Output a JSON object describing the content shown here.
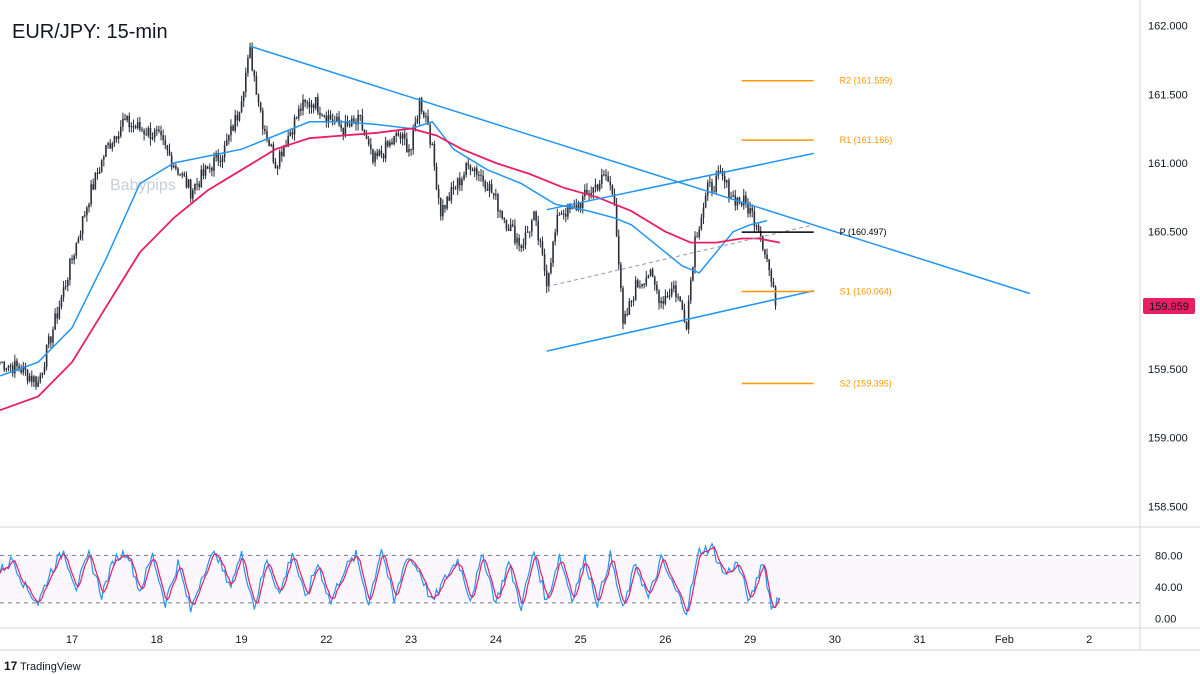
{
  "chart_data": [
    {
      "type": "candlestick",
      "title": "EUR/JPY: 15-min",
      "watermark": "Babypips",
      "colors": {
        "bull": "#2a2e39",
        "bear": "#2a2e39",
        "sma_fast": "#2196f3",
        "sma_slow": "#e91e63",
        "trendline": "#2196f3",
        "level": "#ff9800",
        "pivot": "#000000",
        "price_tag": "#e91e63"
      },
      "ylim": [
        158.35,
        162.15
      ],
      "y_ticks": [
        162.0,
        161.5,
        161.0,
        160.5,
        160.0,
        159.5,
        159.0,
        158.5
      ],
      "y_tick_labels": [
        "162.000",
        "161.500",
        "161.000",
        "160.500",
        "",
        "159.500",
        "159.000",
        "158.500"
      ],
      "x_ticks": [
        {
          "t": 1,
          "label": "17"
        },
        {
          "t": 2,
          "label": "18"
        },
        {
          "t": 3,
          "label": "19"
        },
        {
          "t": 4,
          "label": "22"
        },
        {
          "t": 5,
          "label": "23"
        },
        {
          "t": 6,
          "label": "24"
        },
        {
          "t": 7,
          "label": "25"
        },
        {
          "t": 8,
          "label": "26"
        },
        {
          "t": 9,
          "label": "29"
        },
        {
          "t": 10,
          "label": "30"
        },
        {
          "t": 11,
          "label": "31"
        },
        {
          "t": 12,
          "label": "Feb"
        },
        {
          "t": 13,
          "label": "2"
        }
      ],
      "xlim": [
        0.15,
        13.6
      ],
      "last_price": 159.959,
      "last_price_label": "159.959",
      "price_path": [
        [
          0.15,
          159.55
        ],
        [
          0.4,
          159.5
        ],
        [
          0.6,
          159.4
        ],
        [
          0.8,
          159.85
        ],
        [
          1.0,
          160.3
        ],
        [
          1.2,
          160.75
        ],
        [
          1.4,
          161.1
        ],
        [
          1.6,
          161.3
        ],
        [
          1.8,
          161.25
        ],
        [
          2.0,
          161.2
        ],
        [
          2.2,
          161.0
        ],
        [
          2.4,
          160.8
        ],
        [
          2.6,
          160.95
        ],
        [
          2.8,
          161.1
        ],
        [
          2.95,
          161.35
        ],
        [
          3.1,
          161.8
        ],
        [
          3.25,
          161.3
        ],
        [
          3.4,
          161.0
        ],
        [
          3.55,
          161.2
        ],
        [
          3.7,
          161.4
        ],
        [
          3.85,
          161.45
        ],
        [
          4.0,
          161.35
        ],
        [
          4.2,
          161.25
        ],
        [
          4.4,
          161.3
        ],
        [
          4.55,
          161.0
        ],
        [
          4.7,
          161.1
        ],
        [
          4.85,
          161.2
        ],
        [
          5.0,
          161.1
        ],
        [
          5.1,
          161.45
        ],
        [
          5.2,
          161.3
        ],
        [
          5.35,
          160.65
        ],
        [
          5.5,
          160.8
        ],
        [
          5.7,
          161.0
        ],
        [
          5.9,
          160.85
        ],
        [
          6.1,
          160.6
        ],
        [
          6.3,
          160.4
        ],
        [
          6.45,
          160.6
        ],
        [
          6.6,
          160.15
        ],
        [
          6.75,
          160.65
        ],
        [
          6.9,
          160.65
        ],
        [
          7.05,
          160.75
        ],
        [
          7.2,
          160.85
        ],
        [
          7.3,
          160.9
        ],
        [
          7.4,
          160.75
        ],
        [
          7.5,
          159.8
        ],
        [
          7.65,
          160.1
        ],
        [
          7.8,
          160.2
        ],
        [
          7.95,
          160.0
        ],
        [
          8.1,
          160.1
        ],
        [
          8.25,
          159.85
        ],
        [
          8.35,
          160.45
        ],
        [
          8.5,
          160.8
        ],
        [
          8.65,
          160.9
        ],
        [
          8.8,
          160.75
        ],
        [
          8.95,
          160.7
        ],
        [
          9.1,
          160.55
        ],
        [
          9.2,
          160.3
        ],
        [
          9.3,
          159.96
        ]
      ],
      "sma_fast": [
        [
          0.15,
          159.45
        ],
        [
          0.6,
          159.55
        ],
        [
          1.0,
          159.8
        ],
        [
          1.4,
          160.3
        ],
        [
          1.8,
          160.85
        ],
        [
          2.2,
          161.0
        ],
        [
          2.6,
          161.05
        ],
        [
          3.0,
          161.1
        ],
        [
          3.4,
          161.2
        ],
        [
          3.8,
          161.3
        ],
        [
          4.2,
          161.3
        ],
        [
          4.6,
          161.28
        ],
        [
          5.0,
          161.25
        ],
        [
          5.25,
          161.3
        ],
        [
          5.5,
          161.1
        ],
        [
          5.9,
          160.95
        ],
        [
          6.3,
          160.85
        ],
        [
          6.7,
          160.7
        ],
        [
          7.1,
          160.65
        ],
        [
          7.4,
          160.6
        ],
        [
          7.6,
          160.55
        ],
        [
          7.9,
          160.4
        ],
        [
          8.2,
          160.25
        ],
        [
          8.4,
          160.2
        ],
        [
          8.6,
          160.35
        ],
        [
          8.8,
          160.5
        ],
        [
          9.0,
          160.55
        ],
        [
          9.2,
          160.58
        ]
      ],
      "sma_slow": [
        [
          0.15,
          159.2
        ],
        [
          0.6,
          159.3
        ],
        [
          1.0,
          159.55
        ],
        [
          1.4,
          159.95
        ],
        [
          1.8,
          160.35
        ],
        [
          2.2,
          160.6
        ],
        [
          2.6,
          160.8
        ],
        [
          3.0,
          160.95
        ],
        [
          3.4,
          161.1
        ],
        [
          3.8,
          161.18
        ],
        [
          4.2,
          161.2
        ],
        [
          4.6,
          161.22
        ],
        [
          5.0,
          161.25
        ],
        [
          5.3,
          161.2
        ],
        [
          5.6,
          161.1
        ],
        [
          6.0,
          161.0
        ],
        [
          6.4,
          160.92
        ],
        [
          6.8,
          160.82
        ],
        [
          7.2,
          160.75
        ],
        [
          7.6,
          160.65
        ],
        [
          8.0,
          160.5
        ],
        [
          8.3,
          160.42
        ],
        [
          8.6,
          160.42
        ],
        [
          8.9,
          160.45
        ],
        [
          9.1,
          160.45
        ],
        [
          9.35,
          160.42
        ]
      ],
      "trendlines": [
        {
          "from": [
            3.1,
            161.85
          ],
          "to": [
            12.3,
            160.05
          ],
          "style": "solid"
        },
        {
          "from": [
            6.6,
            159.63
          ],
          "to": [
            9.75,
            160.07
          ],
          "style": "solid"
        },
        {
          "from": [
            6.6,
            160.66
          ],
          "to": [
            9.75,
            161.07
          ],
          "style": "solid"
        },
        {
          "from": [
            6.6,
            160.1
          ],
          "to": [
            9.75,
            160.55
          ],
          "style": "dashed"
        }
      ],
      "levels": [
        {
          "name": "R2",
          "value": 161.599,
          "label": "R2 (161.599)",
          "t0": 8.9,
          "t1": 9.75,
          "kind": "resistance"
        },
        {
          "name": "R1",
          "value": 161.166,
          "label": "R1 (161.166)",
          "t0": 8.9,
          "t1": 9.75,
          "kind": "resistance"
        },
        {
          "name": "P",
          "value": 160.497,
          "label": "P (160.497)",
          "t0": 8.9,
          "t1": 9.75,
          "kind": "pivot"
        },
        {
          "name": "S1",
          "value": 160.064,
          "label": "S1 (160.064)",
          "t0": 8.9,
          "t1": 9.75,
          "kind": "support"
        },
        {
          "name": "S2",
          "value": 159.395,
          "label": "S2 (159.395)",
          "t0": 8.9,
          "t1": 9.75,
          "kind": "support"
        }
      ]
    },
    {
      "type": "line",
      "name": "stochastic",
      "ylim": [
        -8,
        112
      ],
      "y_ticks": [
        80,
        40,
        0
      ],
      "y_tick_labels": [
        "80.00",
        "40.00",
        "0.00"
      ],
      "reference_levels": [
        80,
        20
      ],
      "colors": {
        "k": "#2196f3",
        "d": "#e91e63",
        "band": "#9c27b0"
      },
      "k": [
        [
          0.15,
          60
        ],
        [
          0.3,
          75
        ],
        [
          0.45,
          40
        ],
        [
          0.6,
          20
        ],
        [
          0.75,
          60
        ],
        [
          0.9,
          85
        ],
        [
          1.05,
          40
        ],
        [
          1.2,
          80
        ],
        [
          1.35,
          30
        ],
        [
          1.5,
          75
        ],
        [
          1.65,
          85
        ],
        [
          1.8,
          35
        ],
        [
          1.95,
          80
        ],
        [
          2.1,
          20
        ],
        [
          2.25,
          70
        ],
        [
          2.4,
          10
        ],
        [
          2.55,
          60
        ],
        [
          2.7,
          85
        ],
        [
          2.85,
          40
        ],
        [
          3.0,
          80
        ],
        [
          3.15,
          15
        ],
        [
          3.3,
          75
        ],
        [
          3.45,
          30
        ],
        [
          3.6,
          85
        ],
        [
          3.75,
          25
        ],
        [
          3.9,
          70
        ],
        [
          4.05,
          20
        ],
        [
          4.2,
          60
        ],
        [
          4.35,
          80
        ],
        [
          4.5,
          20
        ],
        [
          4.65,
          90
        ],
        [
          4.8,
          20
        ],
        [
          4.95,
          80
        ],
        [
          5.1,
          60
        ],
        [
          5.25,
          20
        ],
        [
          5.4,
          50
        ],
        [
          5.55,
          75
        ],
        [
          5.7,
          25
        ],
        [
          5.85,
          80
        ],
        [
          6.0,
          20
        ],
        [
          6.15,
          70
        ],
        [
          6.3,
          15
        ],
        [
          6.45,
          85
        ],
        [
          6.6,
          20
        ],
        [
          6.75,
          80
        ],
        [
          6.9,
          25
        ],
        [
          7.05,
          75
        ],
        [
          7.2,
          20
        ],
        [
          7.35,
          80
        ],
        [
          7.5,
          10
        ],
        [
          7.65,
          70
        ],
        [
          7.8,
          25
        ],
        [
          7.95,
          75
        ],
        [
          8.1,
          40
        ],
        [
          8.25,
          10
        ],
        [
          8.4,
          85
        ],
        [
          8.55,
          90
        ],
        [
          8.7,
          55
        ],
        [
          8.85,
          70
        ],
        [
          9.0,
          20
        ],
        [
          9.15,
          75
        ],
        [
          9.25,
          15
        ],
        [
          9.35,
          25
        ]
      ]
    }
  ],
  "x_label_text": "",
  "footer": {
    "brand": "TradingView",
    "logo": "tradingview-logo-icon"
  }
}
